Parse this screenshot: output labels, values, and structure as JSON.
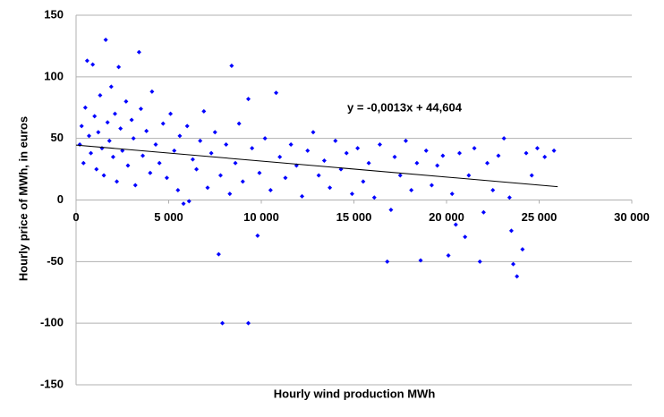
{
  "chart_data": {
    "type": "scatter",
    "x_label": "Hourly wind production MWh",
    "y_label": "Hourly price of MWh, in euros",
    "annotation": "y = -0,0013x + 44,604",
    "color": "#0000ff",
    "x": [
      200,
      300,
      400,
      500,
      600,
      700,
      800,
      900,
      1000,
      1100,
      1200,
      1300,
      1400,
      1500,
      1600,
      1700,
      1800,
      1900,
      2000,
      2100,
      2200,
      2300,
      2400,
      2500,
      2700,
      2800,
      3000,
      3100,
      3200,
      3400,
      3500,
      3600,
      3800,
      4000,
      4100,
      4300,
      4500,
      4700,
      4900,
      5100,
      5300,
      5500,
      5600,
      5800,
      6000,
      6100,
      6300,
      6500,
      6700,
      6900,
      7100,
      7300,
      7500,
      7700,
      7800,
      7900,
      8100,
      8300,
      8400,
      8600,
      8800,
      9000,
      9300,
      9300,
      9500,
      9800,
      9900,
      10200,
      10500,
      10800,
      11000,
      11300,
      11600,
      11900,
      12200,
      12500,
      12800,
      13100,
      13400,
      13700,
      14000,
      14300,
      14600,
      14900,
      15200,
      15500,
      15800,
      16100,
      16400,
      16800,
      17000,
      17200,
      17500,
      17800,
      18100,
      18400,
      18600,
      18900,
      19200,
      19500,
      19800,
      20100,
      20300,
      20500,
      20700,
      21000,
      21200,
      21500,
      21800,
      22000,
      22200,
      22500,
      22800,
      23100,
      23400,
      23500,
      23600,
      23800,
      24100,
      24300,
      24600,
      24900,
      25300,
      25800
    ],
    "values": [
      45,
      60,
      30,
      75,
      113,
      52,
      38,
      110,
      68,
      25,
      55,
      85,
      42,
      20,
      130,
      63,
      48,
      92,
      35,
      70,
      15,
      108,
      58,
      40,
      80,
      28,
      65,
      50,
      12,
      120,
      74,
      36,
      56,
      22,
      88,
      45,
      30,
      62,
      18,
      70,
      40,
      8,
      52,
      -3,
      60,
      -1,
      33,
      25,
      48,
      72,
      10,
      38,
      55,
      -44,
      20,
      -100,
      45,
      5,
      109,
      30,
      62,
      15,
      82,
      -100,
      42,
      -29,
      22,
      50,
      8,
      87,
      35,
      18,
      45,
      28,
      3,
      40,
      55,
      20,
      32,
      10,
      48,
      25,
      38,
      5,
      42,
      15,
      30,
      2,
      45,
      -50,
      -8,
      35,
      20,
      48,
      8,
      30,
      -49,
      40,
      12,
      28,
      36,
      -45,
      5,
      -20,
      38,
      -30,
      20,
      42,
      -50,
      -10,
      30,
      8,
      36,
      50,
      2,
      -25,
      -52,
      -62,
      -40,
      38,
      20,
      42,
      35,
      40
    ],
    "trendline": {
      "x": [
        0,
        26000
      ],
      "y": [
        44.604,
        10.804
      ]
    },
    "xlim": [
      0,
      30000
    ],
    "xticks": [
      0,
      {
        "value": 5000,
        "label": "5 000"
      },
      {
        "value": 10000,
        "label": "10 000"
      },
      {
        "value": 15000,
        "label": "15 000"
      },
      {
        "value": 20000,
        "label": "20 000"
      },
      {
        "value": 25000,
        "label": "25 000"
      },
      {
        "value": 30000,
        "label": "30 000"
      }
    ],
    "ylim": [
      -150,
      150
    ],
    "yticks": [
      -150,
      -100,
      -50,
      0,
      50,
      100,
      150
    ],
    "grid": true
  }
}
